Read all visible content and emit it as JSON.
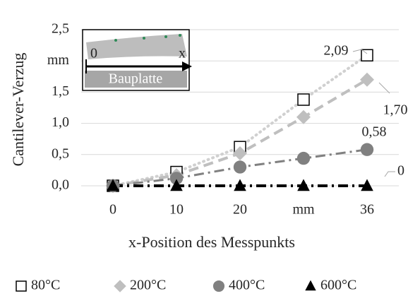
{
  "chart_data": {
    "type": "line",
    "y_label": "Cantilever-Verzug",
    "x_label": "x-Position des Messpunkts",
    "categories": [
      "0",
      "10",
      "20",
      "mm",
      "36"
    ],
    "ylim": [
      0,
      2.5
    ],
    "yticks": [
      {
        "value": 0,
        "label": "0,0"
      },
      {
        "value": 0.5,
        "label": "0,5"
      },
      {
        "value": 1,
        "label": "1,0"
      },
      {
        "value": 1.5,
        "label": "1,5"
      },
      {
        "value": 2,
        "label": "mm"
      },
      {
        "value": 2.5,
        "label": "2,5"
      }
    ],
    "grid": true,
    "series": [
      {
        "name": "80°C",
        "color": "#d0d0d0",
        "marker": "square",
        "values": [
          0,
          0.22,
          0.62,
          1.38,
          2.09
        ],
        "value_labels": [
          null,
          null,
          null,
          null,
          "2,09"
        ]
      },
      {
        "name": "200°C",
        "color": "#bfbfbf",
        "marker": "diamond",
        "values": [
          0,
          0.17,
          0.52,
          1.1,
          1.7
        ],
        "value_labels": [
          null,
          null,
          null,
          null,
          "1,70"
        ]
      },
      {
        "name": "400°C",
        "color": "#808080",
        "marker": "circle",
        "values": [
          0,
          0.12,
          0.3,
          0.44,
          0.58
        ],
        "value_labels": [
          null,
          null,
          null,
          null,
          "0,58"
        ]
      },
      {
        "name": "600°C",
        "color": "#000000",
        "marker": "triangle",
        "values": [
          0,
          0,
          0,
          0,
          0
        ],
        "value_labels": [
          null,
          null,
          null,
          null,
          "0"
        ]
      }
    ],
    "inset_labels": {
      "origin": "0",
      "axis": "x",
      "plate": "Bauplatte"
    }
  }
}
